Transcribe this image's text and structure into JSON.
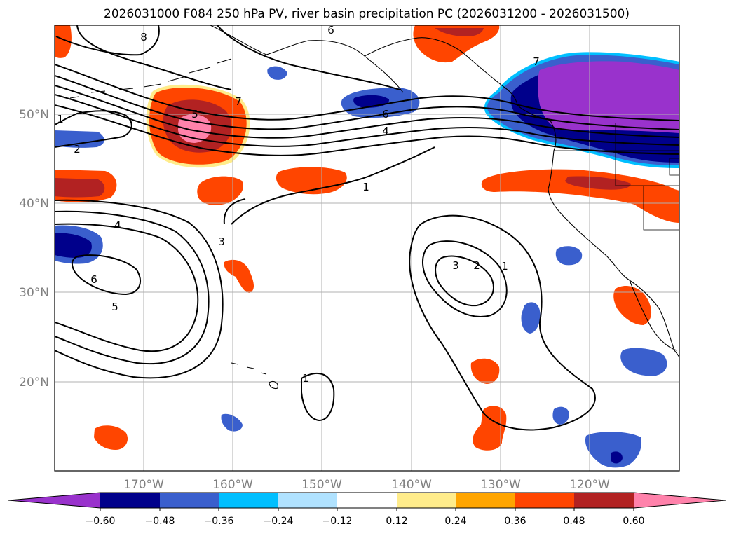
{
  "title": "2026031000 F084 250 hPa PV, river basin precipitation PC (2026031200 - 2026031500)",
  "map": {
    "projection": "PlateCarree",
    "lon_range": [
      -180,
      -110
    ],
    "lat_range": [
      10,
      60
    ],
    "lon_ticks": [
      {
        "value": -170,
        "label": "170°W"
      },
      {
        "value": -160,
        "label": "160°W"
      },
      {
        "value": -150,
        "label": "150°W"
      },
      {
        "value": -140,
        "label": "140°W"
      },
      {
        "value": -130,
        "label": "130°W"
      },
      {
        "value": -120,
        "label": "120°W"
      }
    ],
    "lat_ticks": [
      {
        "value": 20,
        "label": "20°N"
      },
      {
        "value": 30,
        "label": "30°N"
      },
      {
        "value": 40,
        "label": "40°N"
      },
      {
        "value": 50,
        "label": "50°N"
      }
    ],
    "grid": true
  },
  "pv_contour_labels": [
    "1",
    "1",
    "1",
    "1",
    "2",
    "2",
    "3",
    "3",
    "4",
    "4",
    "5",
    "5",
    "6",
    "6",
    "7",
    "7",
    "8",
    "6"
  ],
  "colorbar": {
    "extend": "both",
    "colors": [
      "#9932cc",
      "#00008b",
      "#3a5fcd",
      "#00bfff",
      "#b0e2ff",
      "#ffffff",
      "#ffec8b",
      "#ffa500",
      "#ff4500",
      "#b22222",
      "#ff82ab"
    ],
    "tick_labels": [
      "−0.60",
      "−0.48",
      "−0.36",
      "−0.24",
      "−0.12",
      "0.12",
      "0.24",
      "0.36",
      "0.48",
      "0.60"
    ],
    "tick_values": [
      -0.6,
      -0.48,
      -0.36,
      -0.24,
      -0.12,
      0.12,
      0.24,
      0.36,
      0.48,
      0.6
    ]
  },
  "colors": {
    "contour": "#000000",
    "grid": "#b0b0b0",
    "axis_text": "#808080"
  }
}
